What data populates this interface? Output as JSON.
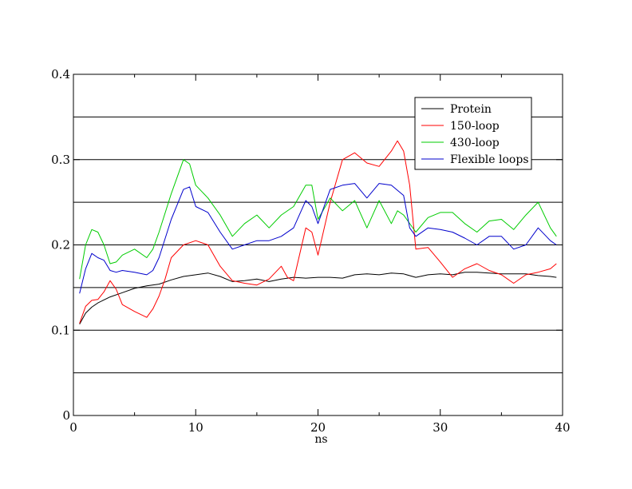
{
  "chart_data": {
    "type": "line",
    "title": "",
    "xlabel": "ns",
    "ylabel": "",
    "xlim": [
      0,
      40
    ],
    "ylim": [
      0,
      0.4
    ],
    "x_ticks": [
      0,
      10,
      20,
      30,
      40
    ],
    "x_tick_labels": [
      "0",
      "10",
      "20",
      "30",
      "40"
    ],
    "y_ticks": [
      0,
      0.1,
      0.2,
      0.3,
      0.4
    ],
    "y_tick_labels": [
      "0",
      "0.1",
      "0.2",
      "0.3",
      "0.4"
    ],
    "y_gridlines": [
      0.05,
      0.1,
      0.15,
      0.2,
      0.25,
      0.3,
      0.35
    ],
    "grid": "horizontal",
    "legend_position": "top-right",
    "series": [
      {
        "name": "Protein",
        "color": "#000000",
        "x": [
          0.5,
          1,
          1.5,
          2,
          3,
          4,
          5,
          6,
          7,
          8,
          9,
          10,
          11,
          12,
          13,
          14,
          15,
          16,
          17,
          18,
          19,
          20,
          21,
          22,
          23,
          24,
          25,
          26,
          27,
          28,
          29,
          30,
          31,
          32,
          33,
          34,
          35,
          36,
          37,
          38,
          39,
          39.5
        ],
        "y": [
          0.107,
          0.12,
          0.127,
          0.132,
          0.139,
          0.144,
          0.149,
          0.152,
          0.154,
          0.159,
          0.163,
          0.165,
          0.167,
          0.163,
          0.157,
          0.158,
          0.16,
          0.157,
          0.16,
          0.162,
          0.161,
          0.162,
          0.162,
          0.161,
          0.165,
          0.166,
          0.165,
          0.167,
          0.166,
          0.162,
          0.165,
          0.166,
          0.165,
          0.168,
          0.168,
          0.167,
          0.166,
          0.166,
          0.166,
          0.164,
          0.163,
          0.162
        ]
      },
      {
        "name": "150-loop",
        "color": "#ff0000",
        "x": [
          0.5,
          1,
          1.5,
          2,
          2.5,
          3,
          3.5,
          4,
          5,
          6,
          6.5,
          7,
          7.5,
          8,
          9,
          10,
          11,
          12,
          13,
          14,
          15,
          16,
          17,
          17.5,
          18,
          19,
          19.5,
          20,
          21,
          22,
          23,
          24,
          25,
          26,
          26.5,
          27,
          27.5,
          28,
          29,
          30,
          31,
          32,
          33,
          34,
          35,
          36,
          37,
          38,
          39,
          39.5
        ],
        "y": [
          0.108,
          0.128,
          0.135,
          0.136,
          0.145,
          0.158,
          0.148,
          0.13,
          0.122,
          0.115,
          0.125,
          0.14,
          0.16,
          0.185,
          0.2,
          0.205,
          0.2,
          0.175,
          0.158,
          0.155,
          0.153,
          0.16,
          0.175,
          0.162,
          0.158,
          0.22,
          0.215,
          0.188,
          0.25,
          0.3,
          0.308,
          0.296,
          0.292,
          0.31,
          0.322,
          0.31,
          0.27,
          0.195,
          0.197,
          0.18,
          0.162,
          0.172,
          0.178,
          0.17,
          0.165,
          0.155,
          0.165,
          0.168,
          0.172,
          0.178
        ]
      },
      {
        "name": "430-loop",
        "color": "#00cc00",
        "x": [
          0.5,
          1,
          1.5,
          2,
          2.5,
          3,
          3.5,
          4,
          5,
          6,
          6.5,
          7,
          8,
          9,
          9.5,
          10,
          11,
          12,
          13,
          14,
          15,
          16,
          17,
          18,
          19,
          19.5,
          20,
          21,
          22,
          23,
          24,
          25,
          26,
          26.5,
          27,
          28,
          29,
          30,
          31,
          32,
          33,
          34,
          35,
          36,
          37,
          38,
          39,
          39.5
        ],
        "y": [
          0.16,
          0.2,
          0.218,
          0.215,
          0.2,
          0.178,
          0.18,
          0.188,
          0.195,
          0.185,
          0.195,
          0.215,
          0.26,
          0.3,
          0.295,
          0.27,
          0.255,
          0.235,
          0.21,
          0.225,
          0.235,
          0.22,
          0.235,
          0.245,
          0.27,
          0.27,
          0.23,
          0.255,
          0.24,
          0.252,
          0.22,
          0.252,
          0.225,
          0.24,
          0.235,
          0.215,
          0.232,
          0.238,
          0.238,
          0.225,
          0.215,
          0.228,
          0.23,
          0.218,
          0.235,
          0.25,
          0.22,
          0.21
        ]
      },
      {
        "name": "Flexible loops",
        "color": "#0000cc",
        "x": [
          0.5,
          1,
          1.5,
          2,
          2.5,
          3,
          3.5,
          4,
          5,
          6,
          6.5,
          7,
          8,
          9,
          9.5,
          10,
          11,
          12,
          13,
          14,
          15,
          16,
          17,
          18,
          19,
          19.5,
          20,
          21,
          22,
          23,
          24,
          25,
          26,
          27,
          27.5,
          28,
          29,
          30,
          31,
          32,
          33,
          34,
          35,
          36,
          37,
          38,
          39,
          39.5
        ],
        "y": [
          0.143,
          0.172,
          0.19,
          0.185,
          0.182,
          0.17,
          0.168,
          0.17,
          0.168,
          0.165,
          0.17,
          0.185,
          0.23,
          0.265,
          0.268,
          0.245,
          0.238,
          0.215,
          0.195,
          0.2,
          0.205,
          0.205,
          0.21,
          0.22,
          0.252,
          0.245,
          0.225,
          0.265,
          0.27,
          0.272,
          0.255,
          0.272,
          0.27,
          0.258,
          0.22,
          0.21,
          0.22,
          0.218,
          0.215,
          0.208,
          0.2,
          0.21,
          0.21,
          0.195,
          0.2,
          0.22,
          0.205,
          0.2
        ]
      }
    ]
  }
}
